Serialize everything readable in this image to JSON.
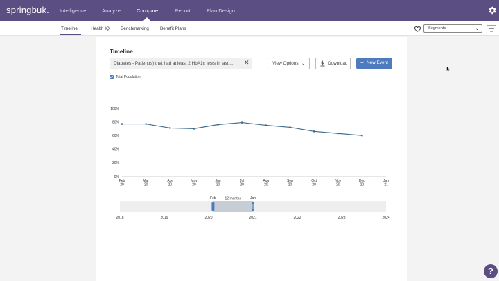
{
  "app": {
    "logo": "springbuk."
  },
  "topnav": {
    "items": [
      {
        "label": "Intelligence"
      },
      {
        "label": "Analyze"
      },
      {
        "label": "Compare",
        "active": true
      },
      {
        "label": "Report"
      },
      {
        "label": "Plan Design"
      }
    ],
    "settings_icon": "gear-icon"
  },
  "subnav": {
    "tabs": [
      {
        "label": "Timeline",
        "active": true
      },
      {
        "label": "Health IQ"
      },
      {
        "label": "Benchmarking"
      },
      {
        "label": "Benefit Plans"
      }
    ],
    "favorite_icon": "heart-icon",
    "segments_select": {
      "value": "Segments"
    },
    "filter_icon": "filter-icon"
  },
  "main": {
    "title": "Timeline",
    "metric": "Diabetes - Patient(s) that had at least 2 HbA1c tests in last ...",
    "view_options_label": "View Options",
    "download_label": "Download",
    "new_event_label": "New Event",
    "legend_label": "Total Population"
  },
  "colors": {
    "header": "#5a4e82",
    "accent": "#4e7bbf",
    "line": "#3f6d8f"
  },
  "chart_data": {
    "type": "line",
    "categories": [
      {
        "month": "Feb",
        "year": "20"
      },
      {
        "month": "Mar",
        "year": "20"
      },
      {
        "month": "Apr",
        "year": "20"
      },
      {
        "month": "May",
        "year": "20"
      },
      {
        "month": "Jun",
        "year": "20"
      },
      {
        "month": "Jul",
        "year": "20"
      },
      {
        "month": "Aug",
        "year": "20"
      },
      {
        "month": "Sep",
        "year": "20"
      },
      {
        "month": "Oct",
        "year": "20"
      },
      {
        "month": "Nov",
        "year": "20"
      },
      {
        "month": "Dec",
        "year": "20"
      },
      {
        "month": "Jan",
        "year": "21"
      }
    ],
    "series": [
      {
        "name": "Total Population",
        "values": [
          77,
          77,
          71,
          70,
          76,
          79,
          75,
          72,
          66,
          63,
          60,
          null
        ]
      }
    ],
    "yticks": [
      "0%",
      "20%",
      "40%",
      "60%",
      "80%",
      "100%"
    ],
    "ylim": [
      0,
      100
    ],
    "grid": false
  },
  "range_selector": {
    "years": [
      "2018",
      "2019",
      "2020",
      "2021",
      "2022",
      "2023",
      "2024"
    ],
    "start_label": "Feb",
    "end_label": "Jan",
    "span_label": "12 months",
    "start_year_fraction": 2.1,
    "end_year_fraction": 3.0
  }
}
